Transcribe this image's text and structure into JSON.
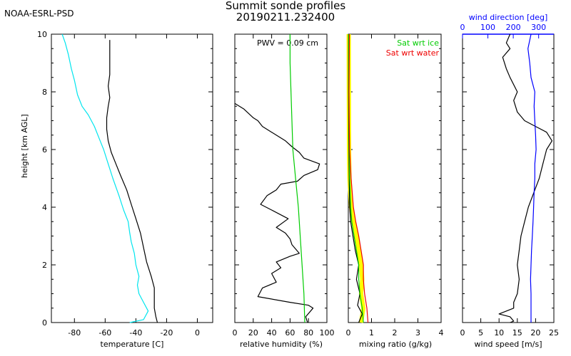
{
  "header": {
    "org": "NOAA-ESRL-PSD",
    "title_line1": "Summit sonde profiles",
    "title_line2": "20190211.232400"
  },
  "colors": {
    "black": "#000000",
    "cyan": "#00e5ee",
    "green": "#00cc00",
    "red": "#ee0000",
    "blue": "#0000ff",
    "yellow": "#ffff00"
  },
  "y_axis": {
    "label": "height [km AGL]",
    "range": [
      0,
      10
    ],
    "ticks": [
      "0",
      "2",
      "4",
      "6",
      "8",
      "10"
    ]
  },
  "chart_data": [
    {
      "type": "line",
      "panel": "temperature",
      "xlabel": "temperature [C]",
      "xlim": [
        -95,
        10
      ],
      "xticks": [
        "-80",
        "-60",
        "-40",
        "-20",
        "0"
      ],
      "xtick_values": [
        -80,
        -60,
        -40,
        -20,
        0
      ],
      "ylim": [
        0,
        10
      ],
      "series": [
        {
          "color": "#000000",
          "points": [
            [
              -26,
              0
            ],
            [
              -27,
              0.2
            ],
            [
              -28,
              0.5
            ],
            [
              -28,
              0.9
            ],
            [
              -28,
              1.2
            ],
            [
              -30,
              1.6
            ],
            [
              -33,
              2.1
            ],
            [
              -35,
              2.6
            ],
            [
              -37,
              3.1
            ],
            [
              -40,
              3.6
            ],
            [
              -43,
              4.1
            ],
            [
              -46,
              4.6
            ],
            [
              -50,
              5.1
            ],
            [
              -53,
              5.5
            ],
            [
              -56,
              5.9
            ],
            [
              -58,
              6.3
            ],
            [
              -59,
              6.7
            ],
            [
              -59,
              7.1
            ],
            [
              -58,
              7.5
            ],
            [
              -57,
              7.8
            ],
            [
              -58,
              8.2
            ],
            [
              -57,
              8.6
            ],
            [
              -57,
              9.0
            ],
            [
              -57,
              9.4
            ],
            [
              -57,
              9.8
            ]
          ]
        },
        {
          "color": "#00e5ee",
          "points": [
            [
              -44,
              0
            ],
            [
              -35,
              0.1
            ],
            [
              -32,
              0.4
            ],
            [
              -35,
              0.7
            ],
            [
              -38,
              1.0
            ],
            [
              -39,
              1.3
            ],
            [
              -38,
              1.6
            ],
            [
              -40,
              2.0
            ],
            [
              -41,
              2.4
            ],
            [
              -43,
              2.8
            ],
            [
              -44,
              3.1
            ],
            [
              -45,
              3.5
            ],
            [
              -48,
              3.9
            ],
            [
              -51,
              4.4
            ],
            [
              -55,
              5.0
            ],
            [
              -58,
              5.5
            ],
            [
              -61,
              6.0
            ],
            [
              -64,
              6.4
            ],
            [
              -67,
              6.8
            ],
            [
              -71,
              7.2
            ],
            [
              -75,
              7.5
            ],
            [
              -78,
              7.9
            ],
            [
              -80,
              8.4
            ],
            [
              -82,
              8.8
            ],
            [
              -84,
              9.3
            ],
            [
              -86,
              9.7
            ],
            [
              -88,
              10.0
            ]
          ]
        }
      ]
    },
    {
      "type": "line",
      "panel": "relative_humidity",
      "xlabel": "relative humidity (%)",
      "xlim": [
        0,
        100
      ],
      "xticks": [
        "0",
        "20",
        "40",
        "60",
        "80",
        "100"
      ],
      "xtick_values": [
        0,
        20,
        40,
        60,
        80,
        100
      ],
      "ylim": [
        0,
        10
      ],
      "annotations": [
        {
          "text": "PWV = 0.09 cm"
        }
      ],
      "series": [
        {
          "color": "#000000",
          "points": [
            [
              79,
              0.0
            ],
            [
              77,
              0.2
            ],
            [
              85,
              0.5
            ],
            [
              80,
              0.6
            ],
            [
              60,
              0.7
            ],
            [
              25,
              0.9
            ],
            [
              30,
              1.2
            ],
            [
              45,
              1.4
            ],
            [
              40,
              1.7
            ],
            [
              50,
              1.9
            ],
            [
              45,
              2.1
            ],
            [
              60,
              2.3
            ],
            [
              70,
              2.4
            ],
            [
              62,
              2.7
            ],
            [
              60,
              2.9
            ],
            [
              55,
              3.1
            ],
            [
              45,
              3.3
            ],
            [
              58,
              3.6
            ],
            [
              40,
              3.9
            ],
            [
              28,
              4.1
            ],
            [
              35,
              4.4
            ],
            [
              45,
              4.6
            ],
            [
              50,
              4.8
            ],
            [
              68,
              4.9
            ],
            [
              75,
              5.1
            ],
            [
              90,
              5.3
            ],
            [
              92,
              5.5
            ],
            [
              75,
              5.7
            ],
            [
              70,
              5.9
            ],
            [
              62,
              6.1
            ],
            [
              55,
              6.3
            ],
            [
              45,
              6.5
            ],
            [
              40,
              6.6
            ],
            [
              30,
              6.8
            ],
            [
              25,
              7.0
            ],
            [
              20,
              7.1
            ],
            [
              10,
              7.4
            ],
            [
              0,
              7.6
            ]
          ]
        },
        {
          "color": "#00cc00",
          "points": [
            [
              76,
              0
            ],
            [
              75,
              1
            ],
            [
              73,
              2
            ],
            [
              71,
              3
            ],
            [
              69,
              4
            ],
            [
              66,
              5
            ],
            [
              63,
              6
            ],
            [
              62,
              7
            ],
            [
              61,
              8
            ],
            [
              60,
              9
            ],
            [
              60,
              10
            ]
          ]
        }
      ]
    },
    {
      "type": "line",
      "panel": "mixing_ratio",
      "xlabel": "mixing ratio (g/kg)",
      "xlim": [
        0,
        4
      ],
      "xticks": [
        "0",
        "1",
        "2",
        "3",
        "4"
      ],
      "xtick_values": [
        0,
        1,
        2,
        3,
        4
      ],
      "ylim": [
        0,
        10
      ],
      "legend": {
        "placement": "top-right",
        "entries": [
          {
            "name": "Sat wrt ice",
            "color": "#00cc00"
          },
          {
            "name": "Sat wrt water",
            "color": "#ee0000"
          }
        ]
      },
      "series": [
        {
          "color": "#ffff00",
          "points": [
            [
              0.55,
              0
            ],
            [
              0.65,
              0.5
            ],
            [
              0.55,
              1.0
            ],
            [
              0.6,
              1.5
            ],
            [
              0.55,
              2.0
            ],
            [
              0.45,
              2.5
            ],
            [
              0.35,
              3.0
            ],
            [
              0.22,
              3.5
            ],
            [
              0.12,
              4.0
            ],
            [
              0.05,
              5.0
            ],
            [
              0.03,
              6.0
            ],
            [
              0.02,
              10
            ]
          ]
        },
        {
          "color": "#000000",
          "points": [
            [
              0.45,
              0
            ],
            [
              0.6,
              0.3
            ],
            [
              0.4,
              0.6
            ],
            [
              0.5,
              1.0
            ],
            [
              0.35,
              1.5
            ],
            [
              0.45,
              2.0
            ],
            [
              0.3,
              2.5
            ],
            [
              0.2,
              3.0
            ],
            [
              0.1,
              3.5
            ],
            [
              0.06,
              4.0
            ],
            [
              0.04,
              4.8
            ],
            [
              0.03,
              5.5
            ],
            [
              0.02,
              6.5
            ],
            [
              0.01,
              8.0
            ],
            [
              0.01,
              10
            ]
          ]
        },
        {
          "color": "#00cc00",
          "points": [
            [
              0.65,
              0
            ],
            [
              0.6,
              0.5
            ],
            [
              0.5,
              1.0
            ],
            [
              0.45,
              1.5
            ],
            [
              0.45,
              2.0
            ],
            [
              0.35,
              2.5
            ],
            [
              0.25,
              3.0
            ],
            [
              0.15,
              3.5
            ],
            [
              0.1,
              4.0
            ],
            [
              0.06,
              5.0
            ],
            [
              0.04,
              6.0
            ],
            [
              0.02,
              8.0
            ],
            [
              0.02,
              10
            ]
          ]
        },
        {
          "color": "#ee0000",
          "points": [
            [
              0.85,
              0
            ],
            [
              0.8,
              0.5
            ],
            [
              0.7,
              1.0
            ],
            [
              0.65,
              1.5
            ],
            [
              0.65,
              2.0
            ],
            [
              0.55,
              2.5
            ],
            [
              0.45,
              3.0
            ],
            [
              0.32,
              3.5
            ],
            [
              0.22,
              4.0
            ],
            [
              0.12,
              5.0
            ],
            [
              0.06,
              6.0
            ],
            [
              0.04,
              7.0
            ],
            [
              0.03,
              8.0
            ],
            [
              0.04,
              9.0
            ],
            [
              0.05,
              10
            ]
          ]
        }
      ]
    },
    {
      "type": "line",
      "panel": "wind",
      "xlabel": "wind speed [m/s]",
      "xlim": [
        0,
        25
      ],
      "xticks": [
        "0",
        "5",
        "10",
        "15",
        "20",
        "25"
      ],
      "xtick_values": [
        0,
        5,
        10,
        15,
        20,
        25
      ],
      "top_axis": {
        "label": "wind direction [deg]",
        "xlim": [
          0,
          360
        ],
        "xticks": [
          "0",
          "100",
          "200",
          "300"
        ],
        "xtick_values": [
          0,
          100,
          200,
          300
        ],
        "color": "#0000ff"
      },
      "ylim": [
        0,
        10
      ],
      "series": [
        {
          "color": "#000000",
          "axis": "bottom",
          "points": [
            [
              13,
              0
            ],
            [
              14,
              0.05
            ],
            [
              13,
              0.2
            ],
            [
              10,
              0.3
            ],
            [
              14,
              0.5
            ],
            [
              14,
              0.7
            ],
            [
              15,
              1.0
            ],
            [
              15.5,
              1.5
            ],
            [
              15,
              2.0
            ],
            [
              15.5,
              2.5
            ],
            [
              16,
              3.0
            ],
            [
              17,
              3.5
            ],
            [
              18,
              4.0
            ],
            [
              19.5,
              4.5
            ],
            [
              21,
              5.0
            ],
            [
              22,
              5.5
            ],
            [
              23,
              6.0
            ],
            [
              24.5,
              6.3
            ],
            [
              23,
              6.6
            ],
            [
              20,
              6.8
            ],
            [
              17,
              7.0
            ],
            [
              15,
              7.3
            ],
            [
              14,
              7.7
            ],
            [
              15,
              8.0
            ],
            [
              13,
              8.5
            ],
            [
              12,
              8.8
            ],
            [
              11,
              9.2
            ],
            [
              13,
              9.5
            ],
            [
              12,
              9.7
            ],
            [
              13,
              10.0
            ]
          ]
        },
        {
          "color": "#0000ff",
          "axis": "top",
          "points": [
            [
              270,
              0
            ],
            [
              270,
              0.5
            ],
            [
              270,
              1.0
            ],
            [
              268,
              1.5
            ],
            [
              270,
              2.0
            ],
            [
              272,
              2.5
            ],
            [
              275,
              3.0
            ],
            [
              278,
              3.5
            ],
            [
              280,
              4.0
            ],
            [
              282,
              4.5
            ],
            [
              285,
              5.0
            ],
            [
              285,
              5.5
            ],
            [
              290,
              6.0
            ],
            [
              288,
              6.5
            ],
            [
              285,
              7.0
            ],
            [
              282,
              7.5
            ],
            [
              285,
              8.0
            ],
            [
              270,
              8.5
            ],
            [
              265,
              9.0
            ],
            [
              258,
              9.5
            ],
            [
              270,
              10.0
            ]
          ]
        }
      ]
    }
  ]
}
